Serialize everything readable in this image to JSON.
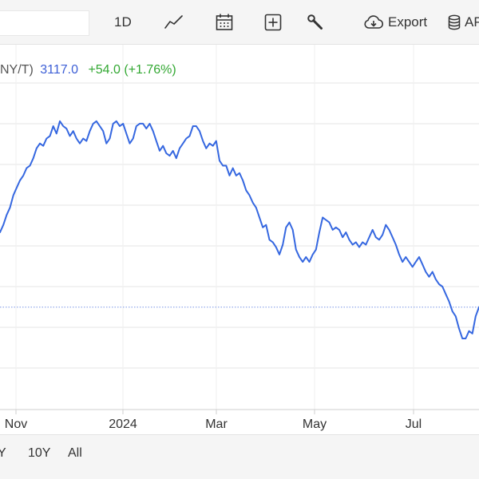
{
  "toolbar": {
    "period_label": "1D",
    "export_label": "Export",
    "api_label": "AP"
  },
  "quote": {
    "symbol_fragment": "NY/T)",
    "last": "3117.0",
    "change": "+54.0 (+1.76%)"
  },
  "colors": {
    "line": "#3567e0",
    "positive": "#33a833",
    "last_price": "#3d5fd6",
    "reference_line": "#7b96e6",
    "grid": "#e6e6e6"
  },
  "footer": {
    "ranges": [
      "Y",
      "10Y",
      "All"
    ]
  },
  "chart_data": {
    "type": "line",
    "title": "",
    "xlabel": "",
    "ylabel": "",
    "x_tick_labels": [
      "Nov",
      "2024",
      "Mar",
      "May",
      "Jul"
    ],
    "grid": true,
    "reference_line_value": 3117.0,
    "series": [
      {
        "values": [
          3420,
          3450,
          3490,
          3520,
          3570,
          3600,
          3630,
          3650,
          3680,
          3690,
          3720,
          3760,
          3780,
          3770,
          3800,
          3810,
          3850,
          3820,
          3870,
          3850,
          3840,
          3810,
          3830,
          3800,
          3780,
          3800,
          3790,
          3830,
          3860,
          3870,
          3850,
          3830,
          3780,
          3800,
          3860,
          3870,
          3850,
          3860,
          3820,
          3780,
          3800,
          3850,
          3860,
          3860,
          3840,
          3860,
          3830,
          3790,
          3750,
          3770,
          3740,
          3730,
          3750,
          3720,
          3760,
          3780,
          3800,
          3810,
          3850,
          3850,
          3830,
          3790,
          3760,
          3780,
          3770,
          3790,
          3710,
          3690,
          3690,
          3650,
          3680,
          3650,
          3660,
          3630,
          3590,
          3570,
          3540,
          3520,
          3480,
          3440,
          3450,
          3390,
          3380,
          3360,
          3330,
          3370,
          3440,
          3460,
          3430,
          3350,
          3320,
          3300,
          3320,
          3300,
          3330,
          3350,
          3420,
          3480,
          3470,
          3460,
          3430,
          3440,
          3430,
          3400,
          3420,
          3390,
          3370,
          3380,
          3360,
          3380,
          3370,
          3400,
          3430,
          3400,
          3390,
          3410,
          3450,
          3430,
          3400,
          3370,
          3330,
          3300,
          3320,
          3300,
          3280,
          3300,
          3320,
          3290,
          3260,
          3240,
          3260,
          3230,
          3210,
          3200,
          3170,
          3140,
          3100,
          3080,
          3030,
          2990,
          2990,
          3020,
          3010,
          3080,
          3117
        ]
      }
    ]
  }
}
